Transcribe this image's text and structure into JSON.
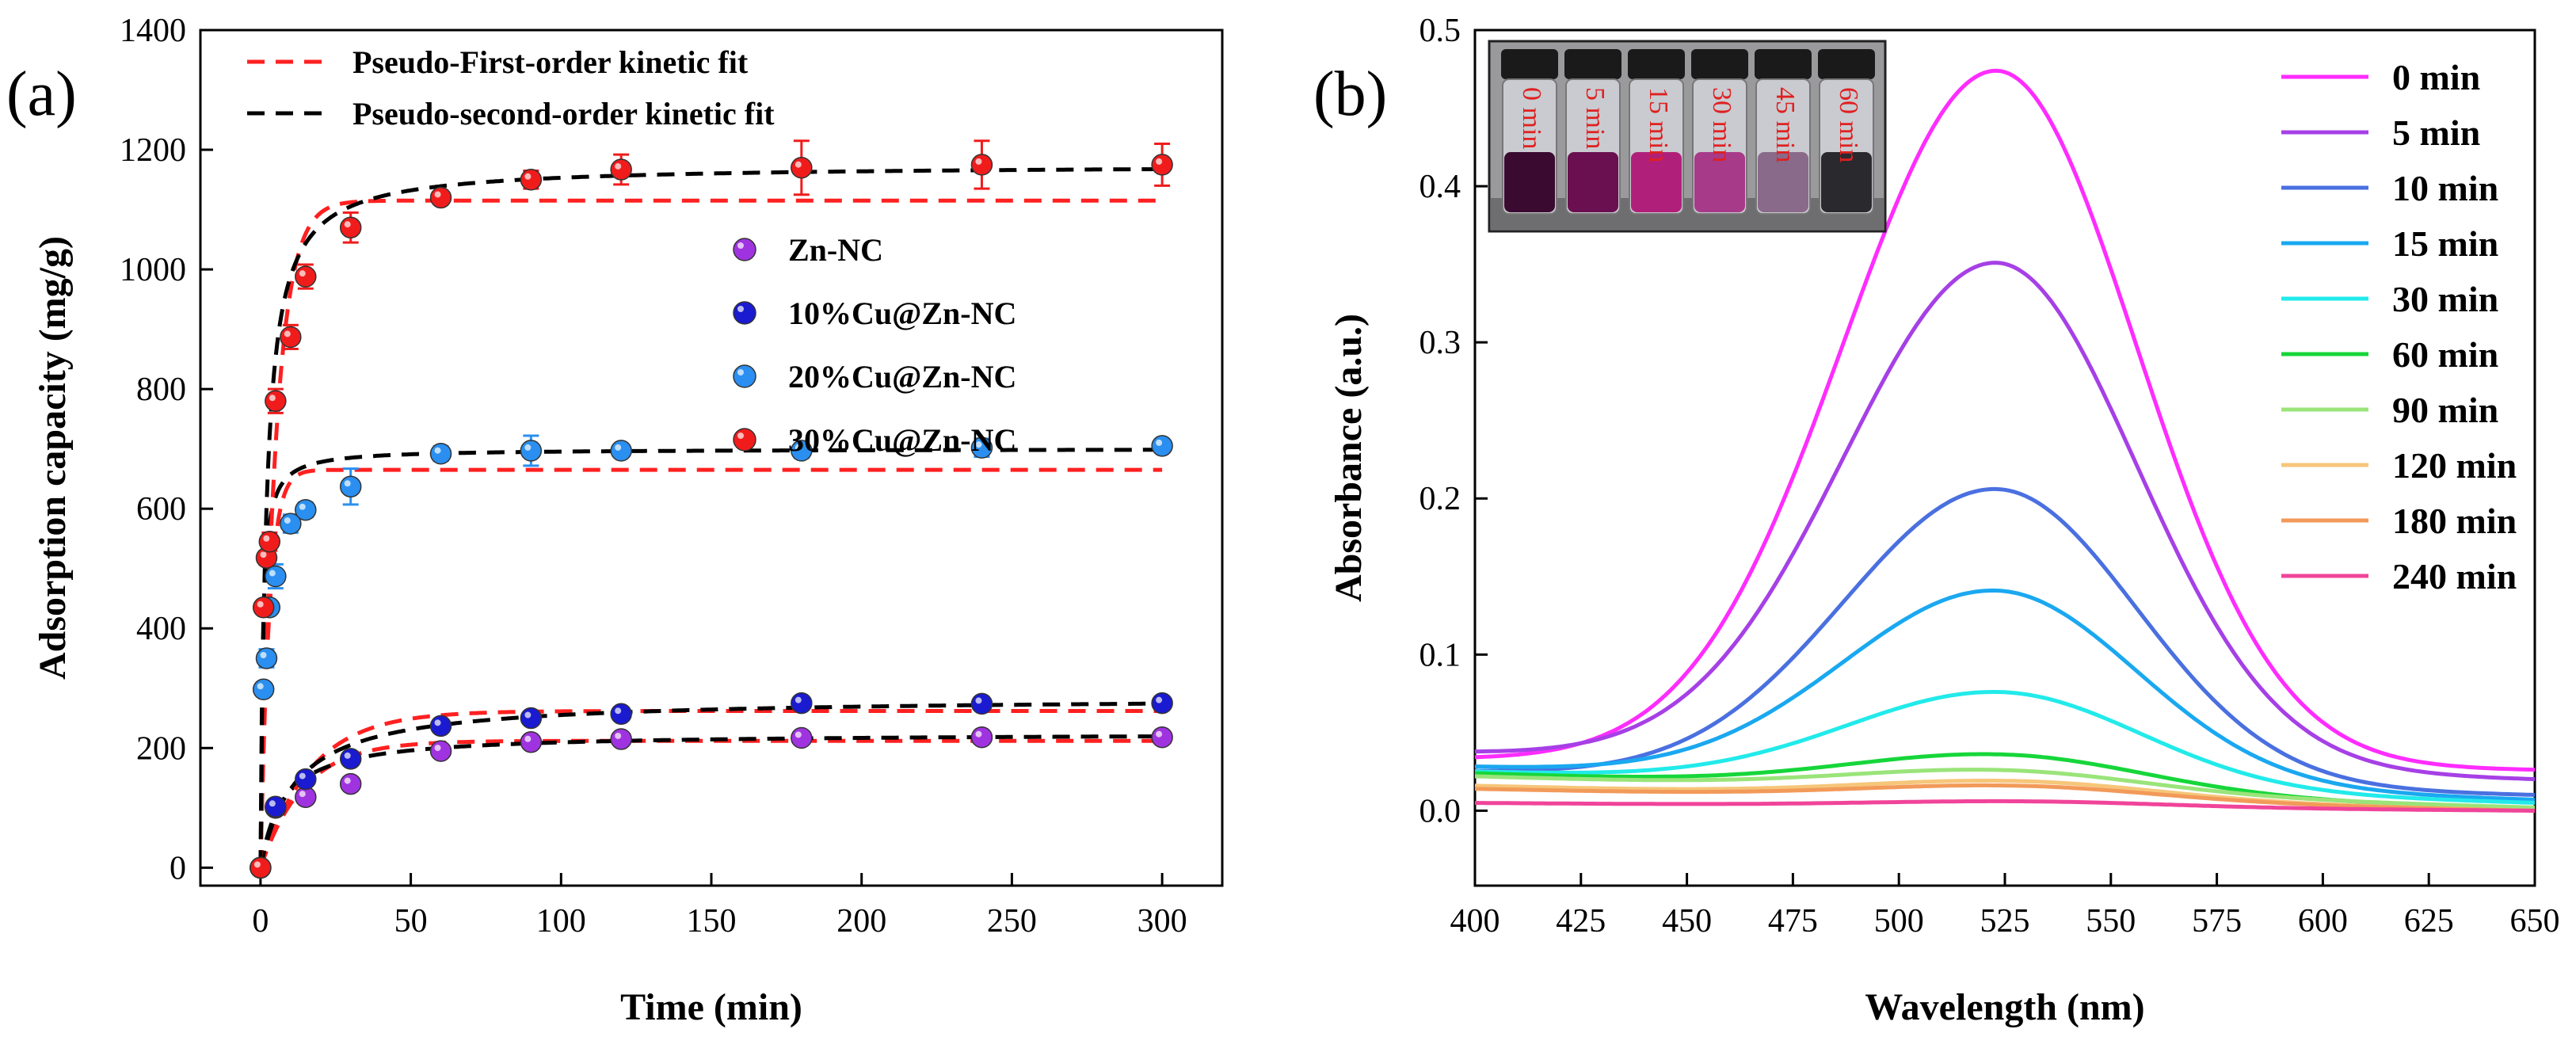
{
  "chart_data": [
    {
      "panel_label": "(a)",
      "type": "scatter",
      "xlabel": "Time (min)",
      "ylabel": "Adsorption capacity (mg/g)",
      "xlim": [
        -20,
        320
      ],
      "ylim": [
        -30,
        1400
      ],
      "xticks": [
        0,
        50,
        100,
        150,
        200,
        250,
        300
      ],
      "yticks": [
        0,
        200,
        400,
        600,
        800,
        1000,
        1200,
        1400
      ],
      "fit_legend": [
        {
          "label": "Pseudo-First-order kinetic fit",
          "color": "#ff2020",
          "dash": true
        },
        {
          "label": "Pseudo-second-order kinetic fit",
          "color": "#000000",
          "dash": true
        }
      ],
      "series": [
        {
          "name": "Zn-NC",
          "color": "#a033e0",
          "x": [
            0,
            5,
            15,
            30,
            60,
            90,
            120,
            180,
            240,
            300
          ],
          "y": [
            0,
            100,
            118,
            140,
            195,
            210,
            215,
            217,
            218,
            218
          ],
          "err": [
            5,
            8,
            8,
            8,
            8,
            8,
            8,
            8,
            8,
            8
          ],
          "pfo": {
            "qe": 212,
            "k": 0.07
          },
          "pso": {
            "qe": 225,
            "k": 0.0006
          }
        },
        {
          "name": "10%Cu@Zn-NC",
          "color": "#1a1ad0",
          "x": [
            0,
            5,
            15,
            30,
            60,
            90,
            120,
            180,
            240,
            300
          ],
          "y": [
            0,
            102,
            148,
            182,
            237,
            250,
            257,
            275,
            274,
            275
          ],
          "err": [
            5,
            8,
            8,
            10,
            8,
            8,
            8,
            10,
            10,
            10
          ],
          "pfo": {
            "qe": 262,
            "k": 0.06
          },
          "pso": {
            "qe": 285,
            "k": 0.0003
          }
        },
        {
          "name": "20%Cu@Zn-NC",
          "color": "#2a8ff0",
          "x": [
            0,
            1,
            2,
            3,
            5,
            10,
            15,
            30,
            60,
            90,
            120,
            180,
            240,
            300
          ],
          "y": [
            0,
            298,
            350,
            435,
            487,
            575,
            598,
            637,
            692,
            697,
            697,
            697,
            702,
            705
          ],
          "err": [
            5,
            8,
            15,
            10,
            20,
            15,
            12,
            30,
            12,
            25,
            10,
            12,
            15,
            10
          ],
          "pfo": {
            "qe": 665,
            "k": 0.35
          },
          "pso": {
            "qe": 700,
            "k": 0.0022
          }
        },
        {
          "name": "30%Cu@Zn-NC",
          "color": "#f01c1c",
          "x": [
            0,
            1,
            2,
            3,
            5,
            10,
            15,
            30,
            60,
            90,
            120,
            180,
            240,
            300
          ],
          "y": [
            0,
            435,
            518,
            545,
            780,
            887,
            988,
            1070,
            1120,
            1150,
            1167,
            1170,
            1175,
            1175
          ],
          "err": [
            5,
            10,
            10,
            15,
            20,
            20,
            20,
            25,
            10,
            15,
            25,
            45,
            40,
            35
          ],
          "pfo": {
            "qe": 1115,
            "k": 0.2
          },
          "pso": {
            "qe": 1175,
            "k": 0.00045
          }
        }
      ]
    },
    {
      "panel_label": "(b)",
      "type": "line",
      "xlabel": "Wavelength (nm)",
      "ylabel": "Absorbance (a.u.)",
      "xlim": [
        400,
        650
      ],
      "ylim": [
        -0.048,
        0.5
      ],
      "xticks": [
        400,
        425,
        450,
        475,
        500,
        525,
        550,
        575,
        600,
        625,
        650
      ],
      "yticks": [
        0.0,
        0.1,
        0.2,
        0.3,
        0.4,
        0.5
      ],
      "ytick_labels": [
        "0.0",
        "0.1",
        "0.2",
        "0.3",
        "0.4",
        "0.5"
      ],
      "inset_vial_labels": [
        "0 min",
        "5 min",
        "15 min",
        "30 min",
        "45 min",
        "60 min"
      ],
      "series": [
        {
          "name": "0 min",
          "color": "#ff2cff",
          "peak_x": 523,
          "peak": 0.474,
          "left": 0.033,
          "right": 0.026
        },
        {
          "name": "5 min",
          "color": "#a640e6",
          "peak_x": 523,
          "peak": 0.351,
          "left": 0.037,
          "right": 0.02
        },
        {
          "name": "10 min",
          "color": "#4a70e0",
          "peak_x": 523,
          "peak": 0.206,
          "left": 0.025,
          "right": 0.01
        },
        {
          "name": "15 min",
          "color": "#1aa8f0",
          "peak_x": 523,
          "peak": 0.141,
          "left": 0.028,
          "right": 0.007
        },
        {
          "name": "30 min",
          "color": "#22eaea",
          "peak_x": 524,
          "peak": 0.076,
          "left": 0.025,
          "right": 0.005
        },
        {
          "name": "60 min",
          "color": "#16d63a",
          "peak_x": 525,
          "peak": 0.036,
          "left": 0.024,
          "right": 0.001
        },
        {
          "name": "90 min",
          "color": "#9ae47a",
          "peak_x": 525,
          "peak": 0.026,
          "left": 0.022,
          "right": 0.002
        },
        {
          "name": "120 min",
          "color": "#f6c67a",
          "peak_x": 528,
          "peak": 0.019,
          "left": 0.016,
          "right": 0.0
        },
        {
          "name": "180 min",
          "color": "#f29a5a",
          "peak_x": 528,
          "peak": 0.016,
          "left": 0.014,
          "right": 0.0
        },
        {
          "name": "240 min",
          "color": "#f0449a",
          "peak_x": 530,
          "peak": 0.006,
          "left": 0.005,
          "right": 0.0
        }
      ]
    }
  ]
}
